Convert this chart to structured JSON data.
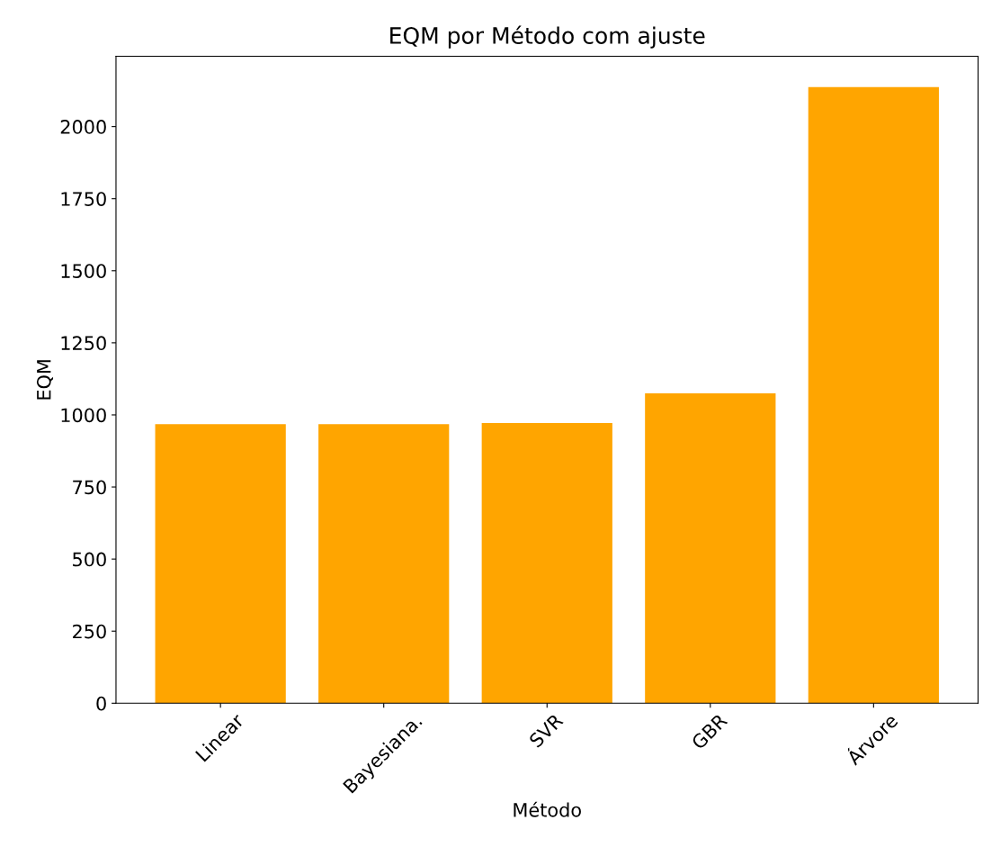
{
  "chart_data": {
    "type": "bar",
    "title": "EQM por Método com ajuste",
    "xlabel": "Método",
    "ylabel": "EQM",
    "categories": [
      "Linear",
      "Bayesiana.",
      "SVR",
      "GBR",
      "Árvore"
    ],
    "values": [
      968,
      968,
      972,
      1075,
      2137
    ],
    "color": "#ffa500",
    "ylim": [
      0,
      2244
    ],
    "yticks": [
      0,
      250,
      500,
      750,
      1000,
      1250,
      1500,
      1750,
      2000
    ],
    "grid": false
  }
}
